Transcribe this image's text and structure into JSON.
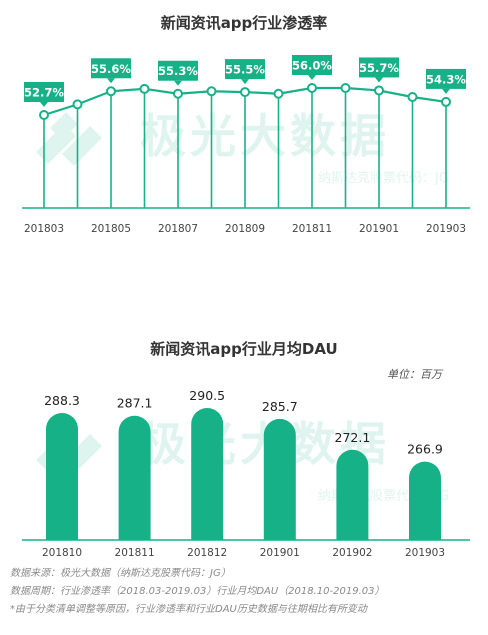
{
  "watermark": {
    "brand_cn": "极光大数据",
    "stock": "纳斯达克股票代码：JG"
  },
  "chart_data": [
    {
      "type": "line",
      "title": "新闻资讯app行业渗透率",
      "x": [
        "201803",
        "201804",
        "201805",
        "201806",
        "201807",
        "201808",
        "201809",
        "201810",
        "201811",
        "201812",
        "201901",
        "201902",
        "201903"
      ],
      "xtick_labels": [
        "201803",
        "201805",
        "201807",
        "201809",
        "201811",
        "201901",
        "201903"
      ],
      "values": [
        52.7,
        54.0,
        55.6,
        55.9,
        55.3,
        55.6,
        55.5,
        55.3,
        56.0,
        56.0,
        55.7,
        54.9,
        54.3
      ],
      "data_labels": [
        "52.7%",
        null,
        "55.6%",
        null,
        "55.3%",
        null,
        "55.5%",
        null,
        "56.0%",
        null,
        "55.7%",
        null,
        "54.3%"
      ],
      "unit": "%",
      "ylim": [
        48,
        58
      ],
      "color": "#17b188"
    },
    {
      "type": "bar",
      "title": "新闻资讯app行业月均DAU",
      "unit_label": "单位：百万",
      "categories": [
        "201810",
        "201811",
        "201812",
        "201901",
        "201902",
        "201903"
      ],
      "values": [
        288.3,
        287.1,
        290.5,
        285.7,
        272.1,
        266.9
      ],
      "value_labels": [
        "288.3",
        "287.1",
        "290.5",
        "285.7",
        "272.1",
        "266.9"
      ],
      "ylim": [
        0,
        300
      ],
      "color": "#17b188"
    }
  ],
  "footer": {
    "source": "数据来源：极光大数据（纳斯达克股票代码：JG）",
    "period": "数据周期：行业渗透率（2018.03-2019.03）行业月均DAU（2018.10-2019.03）",
    "note": "*由于分类清单调整等原因，行业渗透率和行业DAU历史数据与往期相比有所变动"
  }
}
